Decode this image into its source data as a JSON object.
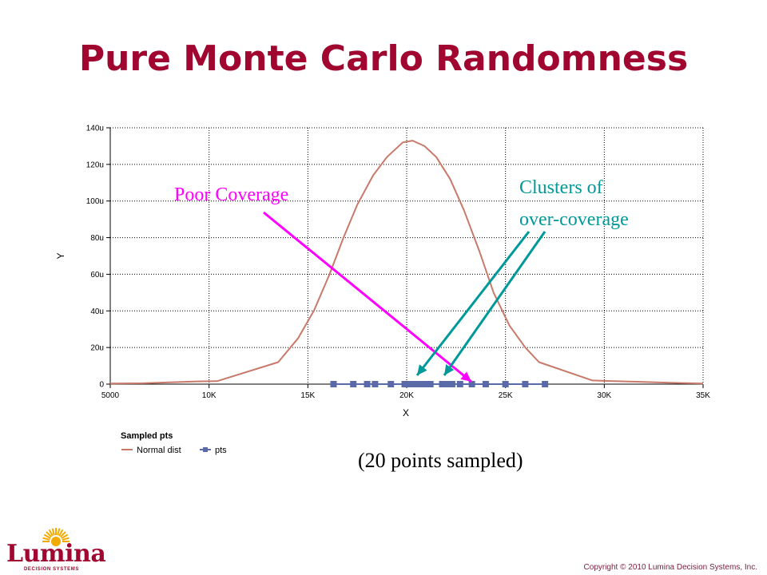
{
  "slide": {
    "title": "Pure Monte Carlo Randomness",
    "caption": "(20 points sampled)",
    "copyright": "Copyright © 2010 Lumina Decision Systems, Inc.",
    "logo": {
      "name": "Lumina",
      "tagline": "DECISION SYSTEMS",
      "accent": "#f2a900"
    }
  },
  "annotations": {
    "poor_coverage": {
      "text": "Poor Coverage",
      "color": "#ff00ff"
    },
    "clusters": {
      "line1": "Clusters of",
      "line2": "over-coverage",
      "color": "#009999"
    }
  },
  "chart_data": {
    "type": "line",
    "xlabel": "X",
    "ylabel": "Y",
    "xlim": [
      5000,
      35000
    ],
    "ylim": [
      0,
      140
    ],
    "x_ticks": [
      5000,
      10000,
      15000,
      20000,
      25000,
      30000,
      35000
    ],
    "x_tick_labels": [
      "5000",
      "10K",
      "15K",
      "20K",
      "25K",
      "30K",
      "35K"
    ],
    "y_ticks": [
      0,
      20,
      40,
      60,
      80,
      100,
      120,
      140
    ],
    "y_tick_labels": [
      "0",
      "20u",
      "40u",
      "60u",
      "80u",
      "100u",
      "120u",
      "140u"
    ],
    "grid": true,
    "legend_title": "Sampled pts",
    "legend_placement": "bottom-left",
    "series": [
      {
        "name": "Normal dist",
        "color": "#c8796a",
        "points": [
          [
            5000,
            0.3
          ],
          [
            6700,
            0.5
          ],
          [
            8000,
            1.0
          ],
          [
            9400,
            1.5
          ],
          [
            10400,
            1.6
          ],
          [
            13500,
            12
          ],
          [
            14500,
            25
          ],
          [
            15300,
            40
          ],
          [
            16100,
            60
          ],
          [
            16800,
            80
          ],
          [
            17500,
            98
          ],
          [
            18300,
            114
          ],
          [
            19000,
            124
          ],
          [
            19800,
            132
          ],
          [
            20300,
            133
          ],
          [
            20900,
            130
          ],
          [
            21500,
            124
          ],
          [
            22200,
            112
          ],
          [
            22900,
            95
          ],
          [
            23700,
            72
          ],
          [
            24400,
            50
          ],
          [
            25200,
            32
          ],
          [
            26000,
            20
          ],
          [
            26700,
            12
          ],
          [
            29400,
            2
          ],
          [
            30500,
            1.6
          ],
          [
            32000,
            1.2
          ],
          [
            33300,
            0.8
          ],
          [
            35000,
            0.3
          ]
        ]
      },
      {
        "name": "pts",
        "color": "#5a6aa8",
        "x": [
          16300,
          17300,
          18000,
          18400,
          19200,
          19900,
          20200,
          20500,
          20700,
          20900,
          21200,
          21800,
          22000,
          22300,
          22700,
          23300,
          24000,
          25000,
          26000,
          27000
        ],
        "y": [
          0,
          0,
          0,
          0,
          0,
          0,
          0,
          0,
          0,
          0,
          0,
          0,
          0,
          0,
          0,
          0,
          0,
          0,
          0,
          0
        ]
      }
    ]
  }
}
